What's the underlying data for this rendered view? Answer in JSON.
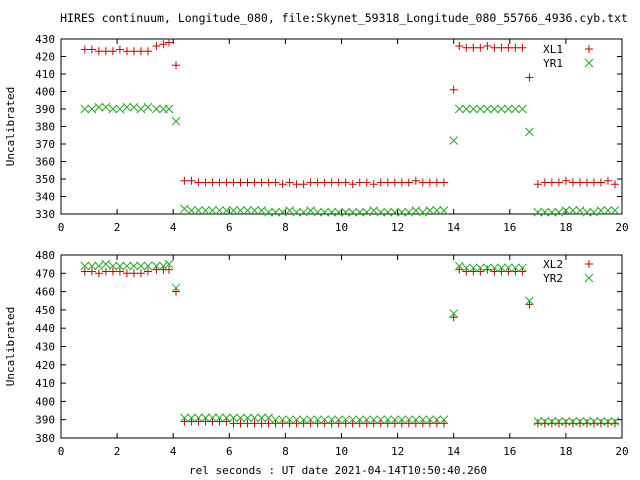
{
  "title": "HIRES continuum, Longitude_080, file:Skynet_59318_Longitude_080_55766_4936.cyb.txt",
  "xlabel": "rel seconds : UT date 2021-04-14T10:50:40.260",
  "colors": {
    "red": "#cc0000",
    "green": "#22aa22",
    "axis": "#000000"
  },
  "chart_data": [
    {
      "type": "scatter",
      "ylabel": "Uncalibrated",
      "xlim": [
        0,
        20
      ],
      "ylim": [
        330,
        430
      ],
      "xticks": [
        0,
        2,
        4,
        6,
        8,
        10,
        12,
        14,
        16,
        18,
        20
      ],
      "yticks": [
        330,
        340,
        350,
        360,
        370,
        380,
        390,
        400,
        410,
        420,
        430
      ],
      "legend_position": "top-right",
      "series": [
        {
          "name": "XL1",
          "marker": "plus",
          "color": "#cc0000",
          "x": [
            0.85,
            1.1,
            1.35,
            1.6,
            1.85,
            2.1,
            2.35,
            2.6,
            2.85,
            3.1,
            3.4,
            3.65,
            3.85,
            4.1,
            4.4,
            4.65,
            4.9,
            5.15,
            5.4,
            5.65,
            5.9,
            6.15,
            6.4,
            6.65,
            6.9,
            7.15,
            7.4,
            7.65,
            7.9,
            8.15,
            8.4,
            8.65,
            8.9,
            9.15,
            9.4,
            9.65,
            9.9,
            10.15,
            10.4,
            10.65,
            10.9,
            11.15,
            11.4,
            11.65,
            11.9,
            12.15,
            12.4,
            12.65,
            12.9,
            13.15,
            13.4,
            13.65,
            14.0,
            14.2,
            14.45,
            14.7,
            14.95,
            15.2,
            15.45,
            15.7,
            15.95,
            16.2,
            16.45,
            16.7,
            17.0,
            17.25,
            17.5,
            17.75,
            18.0,
            18.25,
            18.5,
            18.75,
            19.0,
            19.25,
            19.5,
            19.75
          ],
          "y": [
            424,
            424,
            423,
            423,
            423,
            424,
            423,
            423,
            423,
            423,
            426,
            427,
            428,
            415,
            349,
            349,
            348,
            348,
            348,
            348,
            348,
            348,
            348,
            348,
            348,
            348,
            348,
            348,
            347,
            348,
            347,
            347,
            348,
            348,
            348,
            348,
            348,
            348,
            347,
            348,
            348,
            347,
            348,
            348,
            348,
            348,
            348,
            349,
            348,
            348,
            348,
            348,
            401,
            426,
            425,
            425,
            425,
            426,
            425,
            425,
            425,
            425,
            425,
            408,
            347,
            348,
            348,
            348,
            349,
            348,
            348,
            348,
            348,
            348,
            349,
            347
          ]
        },
        {
          "name": "YR1",
          "marker": "cross",
          "color": "#22aa22",
          "x": [
            0.85,
            1.1,
            1.35,
            1.6,
            1.85,
            2.1,
            2.35,
            2.6,
            2.85,
            3.1,
            3.4,
            3.65,
            3.85,
            4.1,
            4.4,
            4.65,
            4.9,
            5.15,
            5.4,
            5.65,
            5.9,
            6.15,
            6.4,
            6.65,
            6.9,
            7.15,
            7.4,
            7.65,
            7.9,
            8.15,
            8.4,
            8.65,
            8.9,
            9.15,
            9.4,
            9.65,
            9.9,
            10.15,
            10.4,
            10.65,
            10.9,
            11.15,
            11.4,
            11.65,
            11.9,
            12.15,
            12.4,
            12.65,
            12.9,
            13.15,
            13.4,
            13.65,
            14.0,
            14.2,
            14.45,
            14.7,
            14.95,
            15.2,
            15.45,
            15.7,
            15.95,
            16.2,
            16.45,
            16.7,
            17.0,
            17.25,
            17.5,
            17.75,
            18.0,
            18.25,
            18.5,
            18.75,
            19.0,
            19.25,
            19.5,
            19.75
          ],
          "y": [
            390,
            390,
            391,
            391,
            390,
            390,
            391,
            391,
            390,
            391,
            390,
            390,
            390,
            383,
            333,
            332,
            332,
            332,
            332,
            332,
            332,
            332,
            332,
            332,
            332,
            332,
            331,
            331,
            331,
            332,
            331,
            331,
            332,
            331,
            331,
            331,
            331,
            331,
            331,
            331,
            331,
            332,
            331,
            331,
            331,
            331,
            331,
            332,
            331,
            332,
            332,
            332,
            372,
            390,
            390,
            390,
            390,
            390,
            390,
            390,
            390,
            390,
            390,
            377,
            331,
            331,
            331,
            331,
            332,
            332,
            332,
            331,
            331,
            332,
            332,
            332
          ]
        }
      ]
    },
    {
      "type": "scatter",
      "ylabel": "Uncalibrated",
      "xlim": [
        0,
        20
      ],
      "ylim": [
        380,
        480
      ],
      "xticks": [
        0,
        2,
        4,
        6,
        8,
        10,
        12,
        14,
        16,
        18,
        20
      ],
      "yticks": [
        380,
        390,
        400,
        410,
        420,
        430,
        440,
        450,
        460,
        470,
        480
      ],
      "legend_position": "top-right",
      "series": [
        {
          "name": "XL2",
          "marker": "plus",
          "color": "#cc0000",
          "x": [
            0.85,
            1.1,
            1.35,
            1.6,
            1.85,
            2.1,
            2.35,
            2.6,
            2.85,
            3.1,
            3.4,
            3.65,
            3.85,
            4.1,
            4.4,
            4.65,
            4.9,
            5.15,
            5.4,
            5.65,
            5.9,
            6.15,
            6.4,
            6.65,
            6.9,
            7.15,
            7.4,
            7.65,
            7.9,
            8.15,
            8.4,
            8.65,
            8.9,
            9.15,
            9.4,
            9.65,
            9.9,
            10.15,
            10.4,
            10.65,
            10.9,
            11.15,
            11.4,
            11.65,
            11.9,
            12.15,
            12.4,
            12.65,
            12.9,
            13.15,
            13.4,
            13.65,
            14.0,
            14.2,
            14.45,
            14.7,
            14.95,
            15.2,
            15.45,
            15.7,
            15.95,
            16.2,
            16.45,
            16.7,
            17.0,
            17.25,
            17.5,
            17.75,
            18.0,
            18.25,
            18.5,
            18.75,
            19.0,
            19.25,
            19.5,
            19.75
          ],
          "y": [
            471,
            471,
            470,
            471,
            471,
            471,
            470,
            470,
            470,
            471,
            472,
            472,
            472,
            460,
            389,
            389,
            389,
            389,
            389,
            389,
            389,
            388,
            388,
            388,
            388,
            388,
            388,
            388,
            388,
            388,
            388,
            388,
            388,
            388,
            388,
            388,
            388,
            388,
            388,
            388,
            388,
            388,
            388,
            388,
            388,
            388,
            388,
            388,
            388,
            388,
            388,
            388,
            446,
            472,
            471,
            471,
            471,
            472,
            471,
            471,
            471,
            471,
            471,
            453,
            388,
            388,
            388,
            388,
            388,
            388,
            388,
            388,
            388,
            388,
            388,
            388
          ]
        },
        {
          "name": "YR2",
          "marker": "cross",
          "color": "#22aa22",
          "x": [
            0.85,
            1.1,
            1.35,
            1.6,
            1.85,
            2.1,
            2.35,
            2.6,
            2.85,
            3.1,
            3.4,
            3.65,
            3.85,
            4.1,
            4.4,
            4.65,
            4.9,
            5.15,
            5.4,
            5.65,
            5.9,
            6.15,
            6.4,
            6.65,
            6.9,
            7.15,
            7.4,
            7.65,
            7.9,
            8.15,
            8.4,
            8.65,
            8.9,
            9.15,
            9.4,
            9.65,
            9.9,
            10.15,
            10.4,
            10.65,
            10.9,
            11.15,
            11.4,
            11.65,
            11.9,
            12.15,
            12.4,
            12.65,
            12.9,
            13.15,
            13.4,
            13.65,
            14.0,
            14.2,
            14.45,
            14.7,
            14.95,
            15.2,
            15.45,
            15.7,
            15.95,
            16.2,
            16.45,
            16.7,
            17.0,
            17.25,
            17.5,
            17.75,
            18.0,
            18.25,
            18.5,
            18.75,
            19.0,
            19.25,
            19.5,
            19.75
          ],
          "y": [
            474,
            474,
            474,
            475,
            474,
            474,
            474,
            474,
            474,
            474,
            474,
            474,
            475,
            462,
            391,
            391,
            391,
            391,
            391,
            391,
            391,
            391,
            391,
            391,
            391,
            391,
            391,
            390,
            390,
            390,
            390,
            390,
            390,
            390,
            390,
            390,
            390,
            390,
            390,
            390,
            390,
            390,
            390,
            390,
            390,
            390,
            390,
            390,
            390,
            390,
            390,
            390,
            448,
            474,
            473,
            473,
            473,
            473,
            473,
            473,
            473,
            473,
            473,
            455,
            389,
            389,
            389,
            389,
            389,
            389,
            389,
            389,
            389,
            389,
            389,
            389
          ]
        }
      ]
    }
  ]
}
